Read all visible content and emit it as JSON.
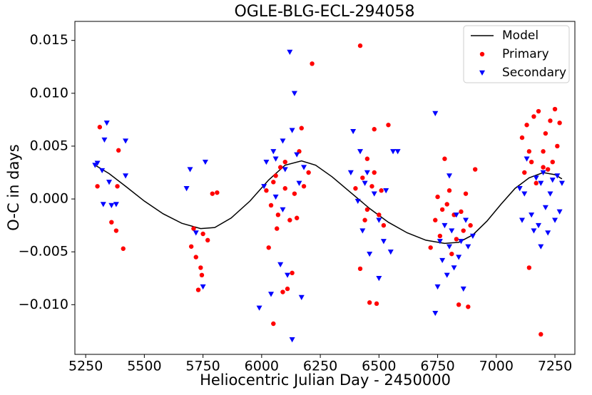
{
  "chart_data": {
    "type": "scatter",
    "title": "OGLE-BLG-ECL-294058",
    "x_label": "Heliocentric Julian Day - 2450000",
    "y_label": "O-C in days",
    "xlim": [
      5204,
      7335
    ],
    "ylim": [
      -0.0147,
      0.0168
    ],
    "xticks": [
      5250,
      5500,
      5750,
      6000,
      6250,
      6500,
      6750,
      7000,
      7250
    ],
    "yticks": [
      {
        "value": -0.01,
        "label": "−0.010"
      },
      {
        "value": -0.005,
        "label": "−0.005"
      },
      {
        "value": 0,
        "label": "0.000"
      },
      {
        "value": 0.005,
        "label": "0.005"
      },
      {
        "value": 0.01,
        "label": "0.010"
      },
      {
        "value": 0.015,
        "label": "0.015"
      }
    ],
    "legend": "upper right",
    "series": [
      {
        "name": "Model",
        "color": "#000000",
        "marker": "line",
        "x": [
          5290,
          5350,
          5420,
          5500,
          5580,
          5660,
          5740,
          5800,
          5870,
          5950,
          6030,
          6100,
          6170,
          6230,
          6300,
          6380,
          6460,
          6540,
          6620,
          6700,
          6780,
          6840,
          6900,
          6960,
          7020,
          7080,
          7140,
          7200,
          7250,
          7280
        ],
        "values": [
          0.0032,
          0.0024,
          0.0012,
          -0.0002,
          -0.0014,
          -0.0023,
          -0.0028,
          -0.0027,
          -0.0018,
          -0.0002,
          0.0018,
          0.0032,
          0.0036,
          0.0032,
          0.0021,
          0.0006,
          -0.0009,
          -0.0022,
          -0.0032,
          -0.0039,
          -0.0042,
          -0.0041,
          -0.0034,
          -0.0021,
          -0.0005,
          0.001,
          0.002,
          0.0025,
          0.0023,
          0.0019
        ]
      },
      {
        "name": "Primary",
        "color": "#ff0000",
        "marker": "circle",
        "x": [
          5300,
          5310,
          5360,
          5380,
          5390,
          5385,
          5410,
          5700,
          5710,
          5720,
          5730,
          5740,
          5745,
          5750,
          5770,
          5790,
          5810,
          6050,
          6030,
          6060,
          6040,
          6050,
          6070,
          6080,
          6090,
          6100,
          6110,
          6120,
          6130,
          6140,
          6150,
          6160,
          6170,
          6180,
          6200,
          6215,
          6100,
          6020,
          6065,
          6420,
          6400,
          6420,
          6430,
          6440,
          6450,
          6460,
          6470,
          6480,
          6490,
          6500,
          6510,
          6520,
          6540,
          6450,
          6480,
          6720,
          6740,
          6750,
          6760,
          6780,
          6790,
          6800,
          6810,
          6820,
          6830,
          6840,
          6850,
          6860,
          6870,
          6880,
          6890,
          6910,
          6770,
          7110,
          7120,
          7130,
          7140,
          7150,
          7160,
          7170,
          7180,
          7190,
          7200,
          7210,
          7220,
          7230,
          7240,
          7250,
          7260,
          7270,
          7140,
          7200
        ],
        "values": [
          0.0012,
          0.0068,
          -0.0022,
          -0.003,
          0.0046,
          0.0012,
          -0.0047,
          -0.0045,
          -0.0028,
          -0.0055,
          -0.0086,
          -0.0065,
          -0.0072,
          -0.0033,
          -0.0039,
          0.0005,
          0.0006,
          -0.0118,
          -0.0046,
          0.0022,
          -0.0006,
          0.0016,
          -0.0015,
          0.003,
          -0.0088,
          0.001,
          -0.0085,
          -0.002,
          -0.007,
          0.0005,
          -0.0018,
          0.0045,
          0.0067,
          0.0012,
          0.0025,
          0.0128,
          0.0035,
          0.0008,
          -0.0028,
          0.0145,
          0.001,
          -0.0066,
          0.002,
          -0.002,
          0.0038,
          -0.0098,
          0.0012,
          0.0066,
          -0.0099,
          -0.0015,
          0.0008,
          -0.0025,
          0.007,
          -0.001,
          0.0025,
          -0.0046,
          -0.002,
          0.0002,
          -0.0035,
          0.0038,
          -0.0005,
          0.0008,
          -0.0052,
          -0.0015,
          -0.0038,
          -0.01,
          -0.0012,
          -0.003,
          0.0005,
          -0.0102,
          -0.0025,
          0.0028,
          -0.001,
          0.0058,
          0.0025,
          0.007,
          -0.0065,
          0.0035,
          0.0078,
          0.0015,
          0.0083,
          -0.0128,
          0.0045,
          0.0062,
          0.0028,
          0.0074,
          0.0035,
          0.0085,
          0.005,
          0.0072,
          0.0045,
          0.003
        ]
      },
      {
        "name": "Secondary",
        "color": "#0000ff",
        "marker": "triangle-down",
        "x": [
          5290,
          5300,
          5320,
          5325,
          5330,
          5340,
          5350,
          5360,
          5380,
          5420,
          5420,
          5680,
          5695,
          5720,
          5750,
          5760,
          5990,
          6010,
          6020,
          6040,
          6050,
          6060,
          6080,
          6090,
          6100,
          6110,
          6120,
          6130,
          6140,
          6150,
          6160,
          6170,
          6180,
          6130,
          6090,
          6060,
          6380,
          6390,
          6410,
          6420,
          6430,
          6440,
          6460,
          6480,
          6500,
          6520,
          6530,
          6550,
          6560,
          6580,
          6450,
          6500,
          6740,
          6740,
          6750,
          6760,
          6770,
          6780,
          6790,
          6800,
          6810,
          6820,
          6830,
          6840,
          6850,
          6860,
          6870,
          6880,
          6900,
          6800,
          7100,
          7110,
          7120,
          7130,
          7150,
          7160,
          7170,
          7180,
          7190,
          7200,
          7210,
          7220,
          7230,
          7240,
          7250,
          7260,
          7270,
          7280,
          7190
        ],
        "values": [
          0.0032,
          0.0034,
          0.0027,
          -0.0005,
          0.0056,
          0.0072,
          0.0016,
          -0.0006,
          -0.0005,
          0.0055,
          0.0022,
          0.001,
          0.0028,
          -0.0032,
          -0.0083,
          0.0035,
          -0.0103,
          0.0012,
          0.0035,
          -0.009,
          0.0045,
          0.0002,
          -0.0062,
          0.0055,
          0.0028,
          -0.0072,
          0.0139,
          -0.0133,
          0.01,
          0.0042,
          0.0015,
          -0.0093,
          0.003,
          0.0065,
          -0.001,
          0.0038,
          0.0025,
          0.0064,
          -0.0002,
          0.0045,
          -0.003,
          0.0015,
          -0.0052,
          0.0005,
          -0.0075,
          -0.004,
          0.0008,
          -0.005,
          0.0045,
          0.0045,
          0.0025,
          -0.002,
          0.0081,
          -0.0108,
          -0.0083,
          -0.004,
          -0.0058,
          -0.0025,
          -0.0072,
          -0.0045,
          -0.003,
          -0.0065,
          -0.0015,
          -0.0055,
          -0.004,
          -0.0085,
          -0.002,
          -0.0045,
          -0.0035,
          0.0022,
          0.001,
          -0.002,
          0.0005,
          0.0038,
          -0.0015,
          -0.003,
          0.002,
          -0.0025,
          0.0015,
          0.0025,
          -0.0008,
          -0.0032,
          0.0005,
          0.0018,
          -0.002,
          0.0022,
          -0.0012,
          0.0015,
          -0.0045
        ]
      }
    ]
  }
}
